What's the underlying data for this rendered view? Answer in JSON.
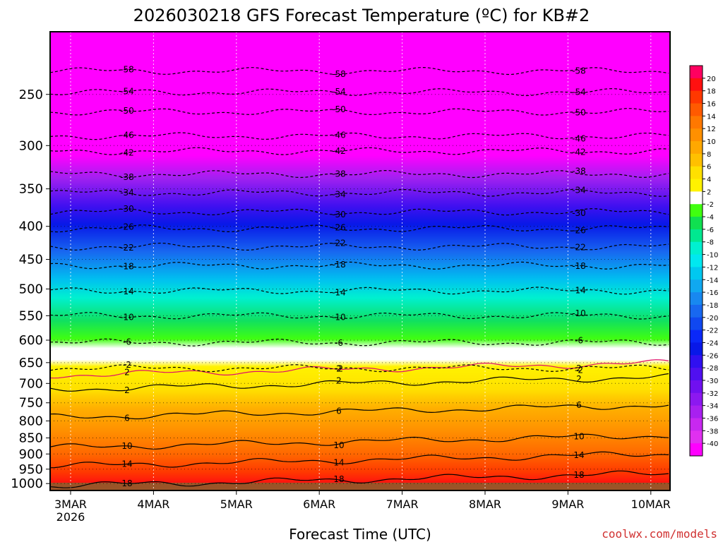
{
  "chart_data": {
    "type": "heatmap",
    "title": "2026030218 GFS Forecast Temperature (ºC) for KB#2",
    "xlabel": "Forecast Time (UTC)",
    "ylabel": "",
    "credit": "coolwx.com/models",
    "x_ticks": [
      "3MAR",
      "4MAR",
      "5MAR",
      "6MAR",
      "7MAR",
      "8MAR",
      "9MAR",
      "10MAR"
    ],
    "x_sublabel": "2026",
    "y_axis": "pressure (hPa), reversed log scale",
    "y_ticks": [
      250,
      300,
      350,
      400,
      450,
      500,
      550,
      600,
      650,
      700,
      750,
      800,
      850,
      900,
      950,
      1000
    ],
    "ylim": [
      1025,
      200
    ],
    "colorbar_labels": [
      20,
      18,
      16,
      14,
      12,
      10,
      8,
      6,
      4,
      2,
      -2,
      -4,
      -6,
      -8,
      -10,
      -12,
      -14,
      -16,
      -18,
      -20,
      -22,
      -24,
      -26,
      -28,
      -30,
      -32,
      -34,
      -36,
      -38,
      -40
    ],
    "colorbar_colors": [
      "#ff0060",
      "#ff1010",
      "#ff3800",
      "#ff5a00",
      "#ff7800",
      "#ff9000",
      "#ffa800",
      "#ffc000",
      "#ffe000",
      "#fff200",
      "#ffffff",
      "#40ff10",
      "#10e050",
      "#00e890",
      "#00f0d0",
      "#00e8f0",
      "#00c8f0",
      "#10a8f0",
      "#1888f0",
      "#1868f0",
      "#1048f0",
      "#0a28f8",
      "#0818e8",
      "#3010f0",
      "#5010f0",
      "#7010f0",
      "#8c18f0",
      "#a820f0",
      "#c828f0",
      "#e030f0",
      "#ff00ff"
    ],
    "isotherm_levels": [
      {
        "label": "18",
        "pressure": 1008
      },
      {
        "label": "14",
        "pressure": 940
      },
      {
        "label": "10",
        "pressure": 880
      },
      {
        "label": "6",
        "pressure": 790
      },
      {
        "label": "2",
        "pressure": 715
      },
      {
        "label": "2",
        "pressure": 680
      },
      {
        "label": "-2",
        "pressure": 663
      },
      {
        "label": "-6",
        "pressure": 605
      },
      {
        "label": "-10",
        "pressure": 550
      },
      {
        "label": "-14",
        "pressure": 503
      },
      {
        "label": "-18",
        "pressure": 460
      },
      {
        "label": "-22",
        "pressure": 430
      },
      {
        "label": "-26",
        "pressure": 403
      },
      {
        "label": "-30",
        "pressure": 380
      },
      {
        "label": "-34",
        "pressure": 355
      },
      {
        "label": "-38",
        "pressure": 332
      },
      {
        "label": "-42",
        "pressure": 306
      },
      {
        "label": "-46",
        "pressure": 290
      },
      {
        "label": "-50",
        "pressure": 266
      },
      {
        "label": "-54",
        "pressure": 248
      },
      {
        "label": "-58",
        "pressure": 230
      }
    ],
    "grid": true,
    "legend": "colorbar-right"
  }
}
